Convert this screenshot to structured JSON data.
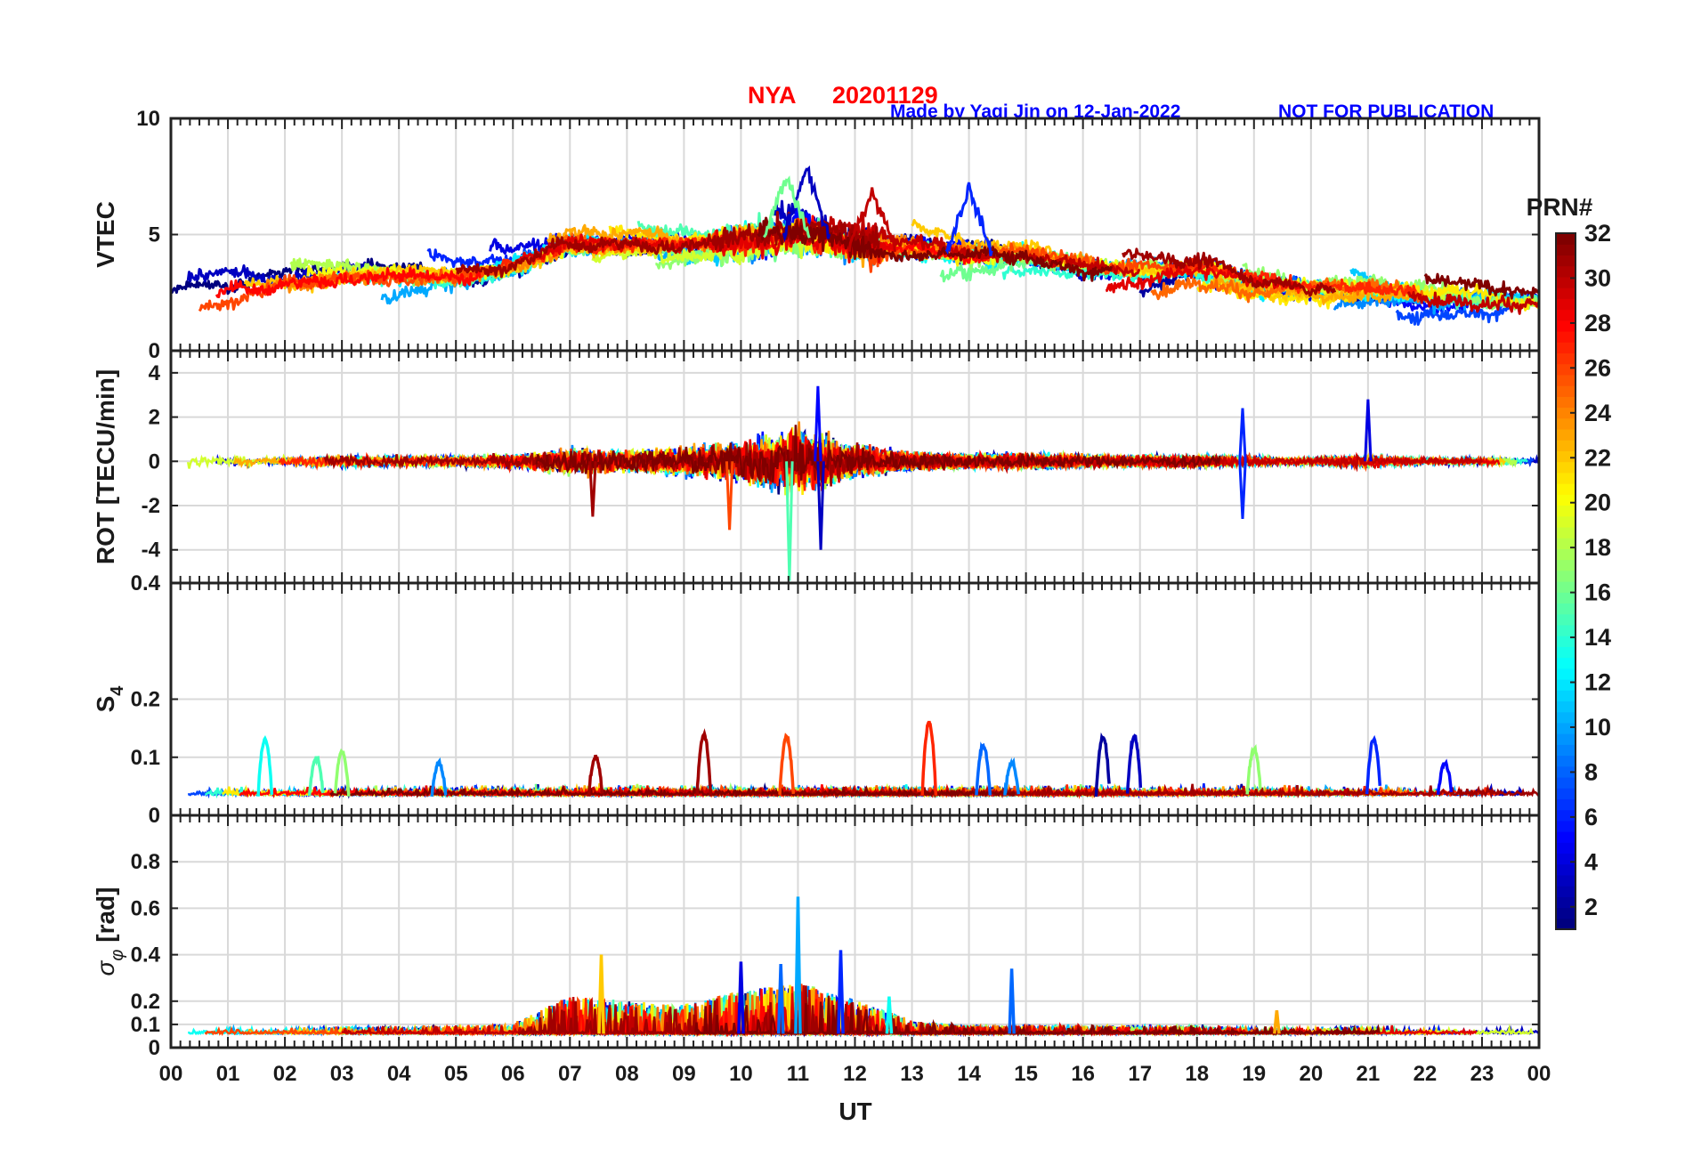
{
  "chart_data": {
    "type": "line",
    "title": {
      "station": "NYA",
      "date": "20201129",
      "credit": "Made by Yaqi Jin on 12-Jan-2022",
      "notice": "NOT FOR PUBLICATION"
    },
    "xlabel": "UT",
    "x_ticks": [
      "00",
      "01",
      "02",
      "03",
      "04",
      "05",
      "06",
      "07",
      "08",
      "09",
      "10",
      "11",
      "12",
      "13",
      "14",
      "15",
      "16",
      "17",
      "18",
      "19",
      "20",
      "21",
      "22",
      "23",
      "00"
    ],
    "xlim": [
      0,
      24
    ],
    "colorbar": {
      "label": "PRN#",
      "range": [
        1,
        32
      ],
      "ticks": [
        "2",
        "4",
        "6",
        "8",
        "10",
        "12",
        "14",
        "16",
        "18",
        "20",
        "22",
        "24",
        "26",
        "28",
        "30",
        "32"
      ],
      "colormap": "jet"
    },
    "panels": [
      {
        "id": "vtec",
        "ylabel": "VTEC",
        "ylim": [
          0,
          10
        ],
        "y_ticks": [
          "0",
          "5",
          "10"
        ],
        "baseline": [
          2.6,
          2.8,
          3.0,
          3.3,
          3.3,
          3.2,
          3.6,
          4.5,
          4.6,
          4.6,
          4.8,
          5.0,
          4.6,
          4.4,
          4.2,
          4.2,
          3.8,
          3.5,
          3.7,
          3.0,
          2.7,
          2.6,
          2.4,
          2.3,
          2.3
        ],
        "spread": 1.2,
        "peak_values": [
          {
            "x": 11.15,
            "y": 7.8,
            "prn": 3
          },
          {
            "x": 10.8,
            "y": 7.5,
            "prn": 16
          },
          {
            "x": 14.0,
            "y": 7.0,
            "prn": 6
          },
          {
            "x": 12.3,
            "y": 6.8,
            "prn": 30
          }
        ]
      },
      {
        "id": "rot",
        "ylabel": "ROT [TECU/min]",
        "ylim": [
          -5.5,
          5.0
        ],
        "y_ticks": [
          "-4",
          "-2",
          "0",
          "2",
          "4"
        ],
        "activity_envelope": [
          0.6,
          0.4,
          0.4,
          0.5,
          0.5,
          0.5,
          0.6,
          1.2,
          1.0,
          1.3,
          1.8,
          2.8,
          1.4,
          0.8,
          0.6,
          0.7,
          0.6,
          0.5,
          0.5,
          0.4,
          0.3,
          0.6,
          0.3,
          0.3,
          0.3
        ],
        "extreme_values": [
          {
            "x": 10.85,
            "y": -5.4,
            "prn": 15
          },
          {
            "x": 11.35,
            "y": 3.4,
            "prn": 5
          },
          {
            "x": 11.4,
            "y": -4.0,
            "prn": 3
          },
          {
            "x": 18.8,
            "y": 2.4,
            "prn": 6
          },
          {
            "x": 18.8,
            "y": -2.6,
            "prn": 6
          },
          {
            "x": 21.0,
            "y": 2.8,
            "prn": 4
          },
          {
            "x": 9.8,
            "y": -3.1,
            "prn": 26
          },
          {
            "x": 7.4,
            "y": -2.5,
            "prn": 31
          }
        ]
      },
      {
        "id": "s4",
        "ylabel": "S4",
        "ylim": [
          0,
          0.4
        ],
        "y_ticks": [
          "0",
          "0.1",
          "0.2",
          "0.4"
        ],
        "background_level": 0.035,
        "spikes": [
          {
            "x": 1.65,
            "y": 0.13,
            "prn": 13
          },
          {
            "x": 2.55,
            "y": 0.1,
            "prn": 15
          },
          {
            "x": 3.0,
            "y": 0.11,
            "prn": 17
          },
          {
            "x": 4.7,
            "y": 0.09,
            "prn": 9
          },
          {
            "x": 7.45,
            "y": 0.1,
            "prn": 31
          },
          {
            "x": 9.35,
            "y": 0.14,
            "prn": 31
          },
          {
            "x": 10.8,
            "y": 0.135,
            "prn": 26
          },
          {
            "x": 13.3,
            "y": 0.16,
            "prn": 27
          },
          {
            "x": 14.25,
            "y": 0.12,
            "prn": 8
          },
          {
            "x": 14.75,
            "y": 0.09,
            "prn": 9
          },
          {
            "x": 16.35,
            "y": 0.135,
            "prn": 2
          },
          {
            "x": 16.9,
            "y": 0.135,
            "prn": 3
          },
          {
            "x": 19.0,
            "y": 0.115,
            "prn": 17
          },
          {
            "x": 21.1,
            "y": 0.13,
            "prn": 6
          },
          {
            "x": 22.35,
            "y": 0.09,
            "prn": 5
          }
        ]
      },
      {
        "id": "sigphi",
        "ylabel": "σφ [rad]",
        "ylim": [
          0,
          1.0
        ],
        "y_ticks": [
          "0",
          "0.1",
          "0.2",
          "0.4",
          "0.6",
          "0.8"
        ],
        "background_level": 0.06,
        "activity_envelope": [
          0.02,
          0.02,
          0.02,
          0.03,
          0.03,
          0.03,
          0.04,
          0.16,
          0.14,
          0.12,
          0.18,
          0.22,
          0.14,
          0.05,
          0.03,
          0.03,
          0.03,
          0.03,
          0.03,
          0.02,
          0.02,
          0.03,
          0.02,
          0.02,
          0.02
        ],
        "spikes": [
          {
            "x": 7.55,
            "y": 0.4,
            "prn": 22
          },
          {
            "x": 11.0,
            "y": 0.65,
            "prn": 10
          },
          {
            "x": 11.75,
            "y": 0.42,
            "prn": 6
          },
          {
            "x": 10.0,
            "y": 0.37,
            "prn": 4
          },
          {
            "x": 10.7,
            "y": 0.36,
            "prn": 8
          },
          {
            "x": 14.75,
            "y": 0.34,
            "prn": 8
          },
          {
            "x": 12.6,
            "y": 0.22,
            "prn": 13
          },
          {
            "x": 19.4,
            "y": 0.16,
            "prn": 23
          }
        ]
      }
    ]
  }
}
